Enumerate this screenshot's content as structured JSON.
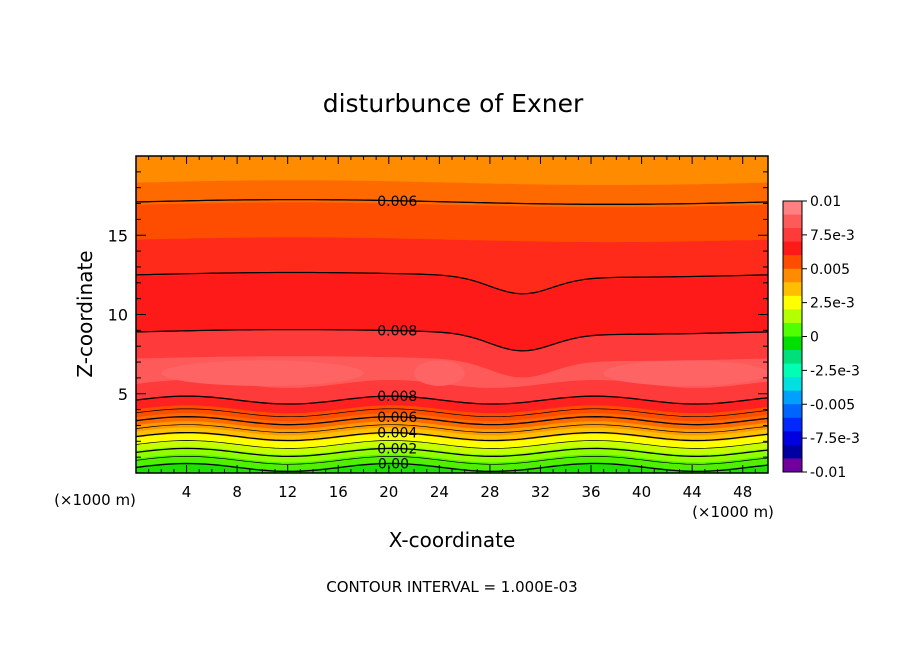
{
  "chart_data": {
    "type": "heatmap",
    "title": "disturbunce of Exner",
    "xlabel": "X-coordinate",
    "ylabel": "Z-coordinate",
    "x_unit": "(×1000 m)",
    "x_unit_right": "(×1000 m)",
    "xlim": [
      0,
      50
    ],
    "ylim": [
      0,
      20
    ],
    "x_ticks": [
      4,
      8,
      12,
      16,
      20,
      24,
      28,
      32,
      36,
      40,
      44,
      48
    ],
    "y_ticks": [
      5,
      10,
      15
    ],
    "grid": false,
    "contour_interval_text": "CONTOUR INTERVAL = 1.000E-03",
    "colorbar": {
      "placement": "right",
      "range": [
        -0.01,
        0.01
      ],
      "tick_labels": [
        "0.01",
        "7.5e-3",
        "0.005",
        "2.5e-3",
        "0",
        "-2.5e-3",
        "-0.005",
        "-7.5e-3",
        "-0.01"
      ],
      "tick_values": [
        0.01,
        0.0075,
        0.005,
        0.0025,
        0,
        -0.0025,
        -0.005,
        -0.0075,
        -0.01
      ],
      "levels": [
        {
          "lo": 0.009,
          "hi": 0.01,
          "color": "#ff8080"
        },
        {
          "lo": 0.008,
          "hi": 0.009,
          "color": "#ff5a5a"
        },
        {
          "lo": 0.007,
          "hi": 0.008,
          "color": "#ff3a3a"
        },
        {
          "lo": 0.006,
          "hi": 0.007,
          "color": "#ff1a1a"
        },
        {
          "lo": 0.005,
          "hi": 0.006,
          "color": "#ff4d00"
        },
        {
          "lo": 0.004,
          "hi": 0.005,
          "color": "#ff8c00"
        },
        {
          "lo": 0.003,
          "hi": 0.004,
          "color": "#ffbf00"
        },
        {
          "lo": 0.002,
          "hi": 0.003,
          "color": "#ffff00"
        },
        {
          "lo": 0.001,
          "hi": 0.002,
          "color": "#b4ff00"
        },
        {
          "lo": 0.0,
          "hi": 0.001,
          "color": "#50ff00"
        },
        {
          "lo": -0.001,
          "hi": 0.0,
          "color": "#00e000"
        },
        {
          "lo": -0.002,
          "hi": -0.001,
          "color": "#00e07a"
        },
        {
          "lo": -0.003,
          "hi": -0.002,
          "color": "#00ffb4"
        },
        {
          "lo": -0.004,
          "hi": -0.003,
          "color": "#00e0e0"
        },
        {
          "lo": -0.005,
          "hi": -0.004,
          "color": "#00a0ff"
        },
        {
          "lo": -0.006,
          "hi": -0.005,
          "color": "#0064ff"
        },
        {
          "lo": -0.007,
          "hi": -0.006,
          "color": "#0028ff"
        },
        {
          "lo": -0.008,
          "hi": -0.007,
          "color": "#0000e0"
        },
        {
          "lo": -0.009,
          "hi": -0.008,
          "color": "#0000a0"
        },
        {
          "lo": -0.01,
          "hi": -0.009,
          "color": "#7000a0"
        }
      ]
    },
    "field_bands": [
      {
        "z_lo": 18.3,
        "z_hi": 20.0,
        "value": 0.0045,
        "color": "#ff8c00"
      },
      {
        "z_lo": 16.9,
        "z_hi": 18.3,
        "value": 0.0055,
        "color": "#ff6a00"
      },
      {
        "z_lo": 14.7,
        "z_hi": 16.9,
        "value": 0.0062,
        "color": "#ff4d00"
      },
      {
        "z_lo": 12.4,
        "z_hi": 14.7,
        "value": 0.0068,
        "color": "#ff2a1a"
      },
      {
        "z_lo": 8.9,
        "z_hi": 12.4,
        "value": 0.0075,
        "color": "#ff1a1a"
      },
      {
        "z_lo": 7.2,
        "z_hi": 8.9,
        "value": 0.0085,
        "color": "#ff3a3a"
      },
      {
        "z_lo": 5.6,
        "z_hi": 7.2,
        "value": 0.0093,
        "color": "#ff5a5a"
      },
      {
        "z_lo": 4.6,
        "z_hi": 5.6,
        "value": 0.0086,
        "color": "#ff3a3a"
      },
      {
        "z_lo": 4.0,
        "z_hi": 4.6,
        "value": 0.0075,
        "color": "#ff2020"
      },
      {
        "z_lo": 3.5,
        "z_hi": 4.0,
        "value": 0.0065,
        "color": "#ff4d00"
      },
      {
        "z_lo": 3.0,
        "z_hi": 3.5,
        "value": 0.0055,
        "color": "#ff6a00"
      },
      {
        "z_lo": 2.6,
        "z_hi": 3.0,
        "value": 0.0045,
        "color": "#ff9900"
      },
      {
        "z_lo": 2.2,
        "z_hi": 2.6,
        "value": 0.0035,
        "color": "#ffc000"
      },
      {
        "z_lo": 1.8,
        "z_hi": 2.2,
        "value": 0.0025,
        "color": "#ffff00"
      },
      {
        "z_lo": 1.4,
        "z_hi": 1.8,
        "value": 0.0018,
        "color": "#c8ff00"
      },
      {
        "z_lo": 0.9,
        "z_hi": 1.4,
        "value": 0.0012,
        "color": "#90ff00"
      },
      {
        "z_lo": 0.4,
        "z_hi": 0.9,
        "value": 0.0006,
        "color": "#50f000"
      },
      {
        "z_lo": 0.0,
        "z_hi": 0.4,
        "value": 0.0002,
        "color": "#20e000"
      }
    ],
    "high_pocket_color": "#ff6464",
    "contours": [
      {
        "z": 17.1,
        "label": "0.006",
        "label_x": 18.3
      },
      {
        "z": 12.5,
        "label": "",
        "label_x": null
      },
      {
        "z": 8.9,
        "label": "0.008",
        "label_x": 18.3
      },
      {
        "z": 4.6,
        "label": "0.008",
        "label_x": 18.3
      },
      {
        "z": 3.3,
        "label": "0.006",
        "label_x": 18.3
      },
      {
        "z": 2.3,
        "label": "0.004",
        "label_x": 18.3
      },
      {
        "z": 1.3,
        "label": "0.002",
        "label_x": 18.3
      },
      {
        "z": 0.35,
        "label": "0.00",
        "label_x": 18.0
      }
    ]
  }
}
